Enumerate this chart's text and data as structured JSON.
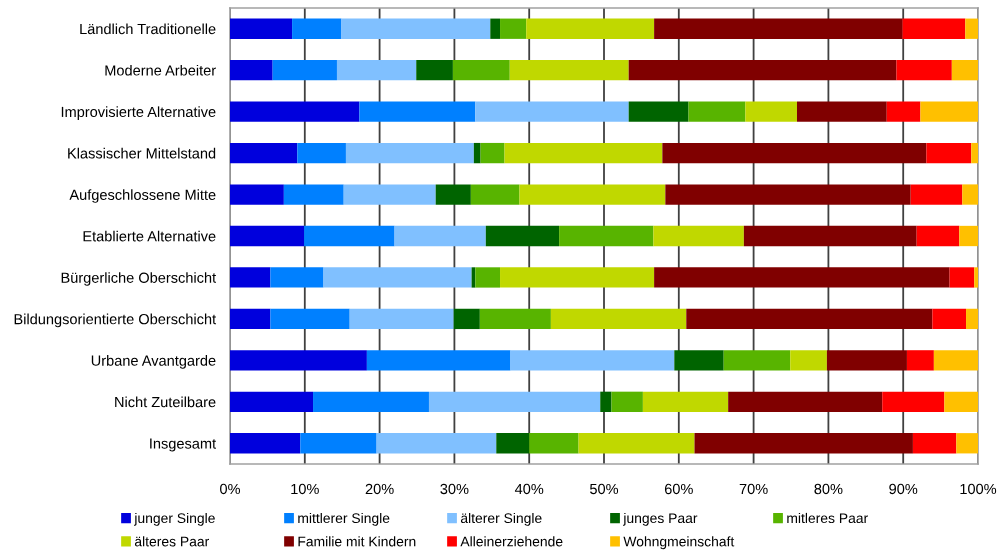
{
  "chart_data": {
    "type": "bar",
    "orientation": "horizontal",
    "stacked": true,
    "categories": [
      "Ländlich Traditionelle",
      "Moderne Arbeiter",
      "Improvisierte Alternative",
      "Klassischer Mittelstand",
      "Aufgeschlossene Mitte",
      "Etablierte Alternative",
      "Bürgerliche Oberschicht",
      "Bildungsorientierte Oberschicht",
      "Urbane Avantgarde",
      "Nicht Zuteilbare",
      "Insgesamt"
    ],
    "series": [
      {
        "name": "junger Single",
        "color": "#0000dd",
        "values": [
          8.3,
          5.7,
          17.3,
          9.0,
          7.2,
          9.9,
          5.4,
          5.4,
          18.3,
          11.1,
          9.4
        ]
      },
      {
        "name": "mittlerer Single",
        "color": "#0080ff",
        "values": [
          6.6,
          8.6,
          15.5,
          6.5,
          8.0,
          12.1,
          7.1,
          10.6,
          19.2,
          15.5,
          10.2
        ]
      },
      {
        "name": "älterer Single",
        "color": "#80c0ff",
        "values": [
          19.9,
          10.6,
          20.5,
          17.1,
          12.3,
          12.2,
          19.8,
          13.9,
          21.9,
          22.9,
          16.0
        ]
      },
      {
        "name": "junges Paar",
        "color": "#006400",
        "values": [
          1.3,
          4.9,
          8.0,
          0.9,
          4.7,
          9.8,
          0.5,
          3.5,
          6.6,
          1.5,
          4.4
        ]
      },
      {
        "name": "mitleres Paar",
        "color": "#58b400",
        "values": [
          3.5,
          7.6,
          7.6,
          3.2,
          6.5,
          12.6,
          3.3,
          9.5,
          8.9,
          4.2,
          6.6
        ]
      },
      {
        "name": "älteres Paar",
        "color": "#c0d800",
        "values": [
          17.1,
          15.9,
          6.9,
          21.1,
          19.5,
          12.1,
          20.6,
          18.1,
          4.9,
          11.4,
          15.5
        ]
      },
      {
        "name": "Familie mit Kindern",
        "color": "#800000",
        "values": [
          33.2,
          35.8,
          12.0,
          35.3,
          32.8,
          23.1,
          39.5,
          32.9,
          10.7,
          20.6,
          29.2
        ]
      },
      {
        "name": "Alleinerziehende",
        "color": "#ff0000",
        "values": [
          8.4,
          7.4,
          4.5,
          6.0,
          6.9,
          5.7,
          3.3,
          4.5,
          3.6,
          8.3,
          5.8
        ]
      },
      {
        "name": "Wohngmeinschaft",
        "color": "#ffc000",
        "values": [
          1.7,
          3.5,
          7.7,
          0.9,
          2.1,
          2.5,
          0.5,
          1.6,
          5.9,
          4.5,
          2.9
        ]
      }
    ],
    "xlim": [
      0,
      100
    ],
    "xticks": [
      {
        "value": 0,
        "label": "0%"
      },
      {
        "value": 10,
        "label": "10%"
      },
      {
        "value": 20,
        "label": "20%"
      },
      {
        "value": 30,
        "label": "30%"
      },
      {
        "value": 40,
        "label": "40%"
      },
      {
        "value": 50,
        "label": "50%"
      },
      {
        "value": 60,
        "label": "60%"
      },
      {
        "value": 70,
        "label": "70%"
      },
      {
        "value": 80,
        "label": "80%"
      },
      {
        "value": 90,
        "label": "90%"
      },
      {
        "value": 100,
        "label": "100%"
      }
    ],
    "grid": "x",
    "legend": "bottom"
  }
}
